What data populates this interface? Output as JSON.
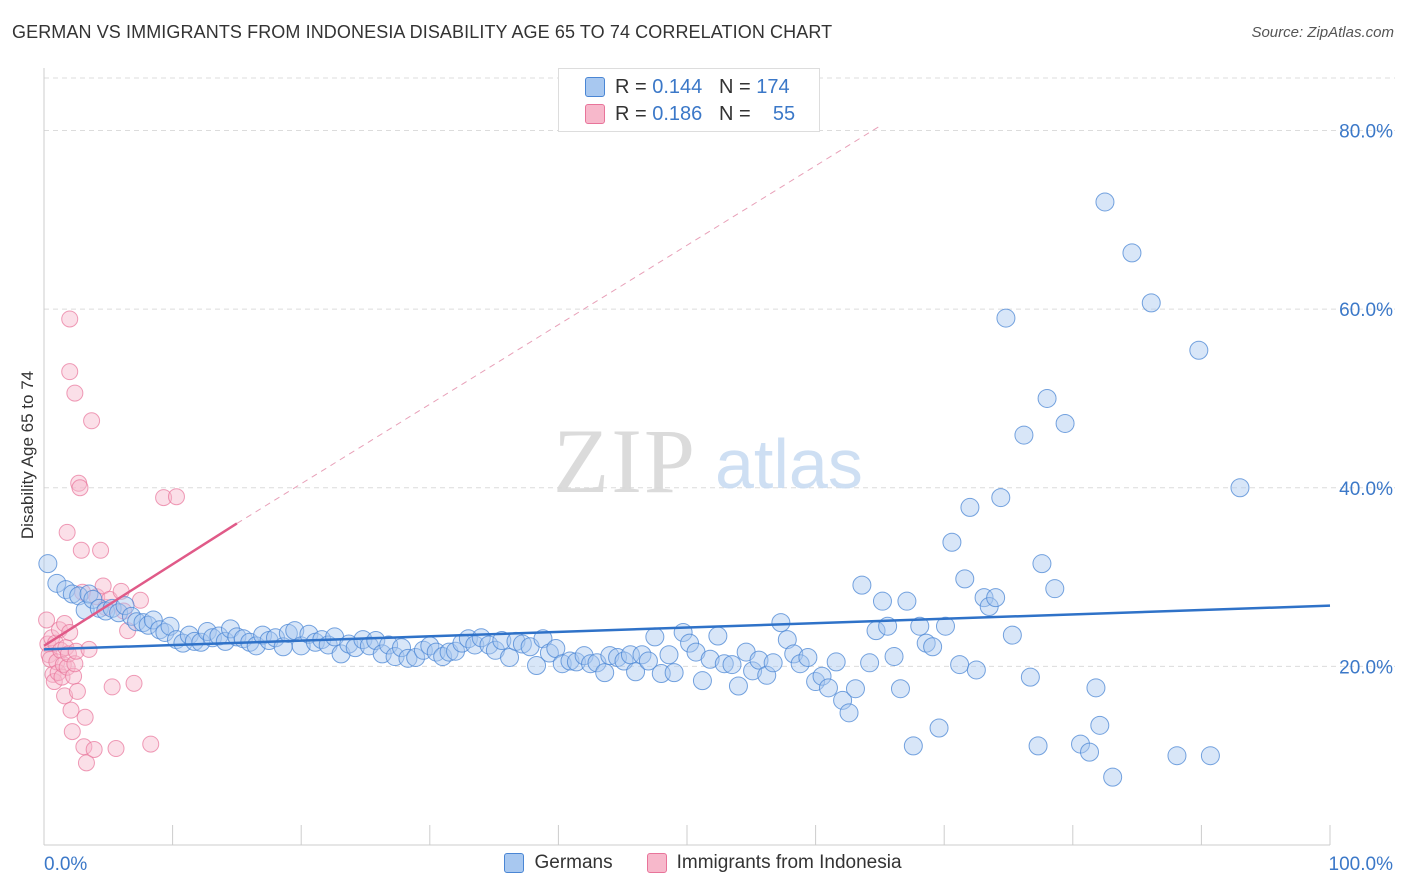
{
  "title": "GERMAN VS IMMIGRANTS FROM INDONESIA DISABILITY AGE 65 TO 74 CORRELATION CHART",
  "source": "Source: ZipAtlas.com",
  "watermark": {
    "zip": "ZIP",
    "atlas": "atlas"
  },
  "legend": {
    "rows": [
      {
        "r_label": "R =",
        "r_value": "0.144",
        "n_label": "N =",
        "n_value": "174"
      },
      {
        "r_label": "R =",
        "r_value": "0.186",
        "n_label": "N =",
        "n_value": "55"
      }
    ]
  },
  "bottom_legend": {
    "germans": "Germans",
    "indonesia": "Immigrants from Indonesia"
  },
  "colors": {
    "blue_fill": "#a8c8f0",
    "blue_stroke": "#4a86d4",
    "blue_line": "#2f72c8",
    "pink_fill": "#f7b8cb",
    "pink_stroke": "#e8749a",
    "pink_line": "#e05a88",
    "grid": "#dcdcdc",
    "axis_label": "#3b78c8"
  },
  "chart_data": {
    "type": "scatter",
    "title": "GERMAN VS IMMIGRANTS FROM INDONESIA DISABILITY AGE 65 TO 74 CORRELATION CHART",
    "xlabel": "",
    "ylabel": "Disability Age 65 to 74",
    "xlim": [
      0,
      100
    ],
    "ylim": [
      0,
      87
    ],
    "x_tick_labels": [
      "0.0%",
      "100.0%"
    ],
    "y_ticks": [
      20,
      40,
      60,
      80
    ],
    "y_tick_labels": [
      "20.0%",
      "40.0%",
      "60.0%",
      "80.0%"
    ],
    "grid": true,
    "legend_position": "top-center",
    "series": [
      {
        "name": "Germans",
        "trend": {
          "x0": 0,
          "y0": 21.9,
          "x1": 100,
          "y1": 26.8
        },
        "points": [
          [
            0.3,
            31.5
          ],
          [
            1.0,
            29.3
          ],
          [
            1.7,
            28.6
          ],
          [
            2.2,
            28.1
          ],
          [
            2.7,
            27.9
          ],
          [
            3.2,
            26.3
          ],
          [
            3.5,
            28.1
          ],
          [
            3.8,
            27.5
          ],
          [
            4.3,
            26.5
          ],
          [
            4.8,
            26.2
          ],
          [
            5.3,
            26.5
          ],
          [
            5.8,
            26.0
          ],
          [
            6.3,
            26.8
          ],
          [
            6.8,
            25.6
          ],
          [
            7.2,
            25.0
          ],
          [
            7.7,
            24.9
          ],
          [
            8.1,
            24.6
          ],
          [
            8.5,
            25.2
          ],
          [
            9.0,
            24.1
          ],
          [
            9.4,
            23.8
          ],
          [
            9.8,
            24.5
          ],
          [
            10.3,
            23.0
          ],
          [
            10.8,
            22.6
          ],
          [
            11.3,
            23.5
          ],
          [
            11.7,
            22.8
          ],
          [
            12.2,
            22.7
          ],
          [
            12.7,
            23.9
          ],
          [
            13.1,
            23.2
          ],
          [
            13.6,
            23.4
          ],
          [
            14.1,
            22.8
          ],
          [
            14.5,
            24.2
          ],
          [
            15.0,
            23.3
          ],
          [
            15.5,
            23.1
          ],
          [
            16.0,
            22.7
          ],
          [
            16.5,
            22.3
          ],
          [
            17.0,
            23.5
          ],
          [
            17.5,
            22.9
          ],
          [
            18.0,
            23.2
          ],
          [
            18.6,
            22.2
          ],
          [
            19.0,
            23.7
          ],
          [
            19.5,
            24.0
          ],
          [
            20.0,
            22.3
          ],
          [
            20.6,
            23.6
          ],
          [
            21.1,
            22.7
          ],
          [
            21.6,
            23.0
          ],
          [
            22.1,
            22.4
          ],
          [
            22.6,
            23.3
          ],
          [
            23.1,
            21.4
          ],
          [
            23.7,
            22.5
          ],
          [
            24.2,
            22.1
          ],
          [
            24.8,
            23.0
          ],
          [
            25.3,
            22.3
          ],
          [
            25.8,
            22.9
          ],
          [
            26.3,
            21.4
          ],
          [
            26.8,
            22.4
          ],
          [
            27.3,
            21.1
          ],
          [
            27.8,
            22.1
          ],
          [
            28.3,
            20.9
          ],
          [
            28.9,
            21.0
          ],
          [
            29.5,
            21.8
          ],
          [
            30.0,
            22.3
          ],
          [
            30.5,
            21.6
          ],
          [
            31.0,
            21.1
          ],
          [
            31.5,
            21.6
          ],
          [
            32.0,
            21.7
          ],
          [
            32.5,
            22.6
          ],
          [
            33.0,
            23.1
          ],
          [
            33.5,
            22.4
          ],
          [
            34.0,
            23.2
          ],
          [
            34.6,
            22.4
          ],
          [
            35.1,
            21.8
          ],
          [
            35.6,
            22.9
          ],
          [
            36.2,
            21.0
          ],
          [
            36.7,
            22.8
          ],
          [
            37.2,
            22.5
          ],
          [
            37.8,
            22.2
          ],
          [
            38.3,
            20.1
          ],
          [
            38.8,
            23.1
          ],
          [
            39.3,
            21.5
          ],
          [
            39.8,
            22.0
          ],
          [
            40.3,
            20.3
          ],
          [
            40.9,
            20.6
          ],
          [
            41.4,
            20.5
          ],
          [
            42.0,
            21.2
          ],
          [
            42.5,
            20.3
          ],
          [
            43.0,
            20.4
          ],
          [
            43.6,
            19.3
          ],
          [
            44.0,
            21.2
          ],
          [
            44.6,
            21.0
          ],
          [
            45.1,
            20.6
          ],
          [
            45.6,
            21.3
          ],
          [
            46.0,
            19.4
          ],
          [
            46.5,
            21.3
          ],
          [
            47.0,
            20.6
          ],
          [
            47.5,
            23.3
          ],
          [
            48.0,
            19.2
          ],
          [
            48.6,
            21.3
          ],
          [
            49.0,
            19.3
          ],
          [
            49.7,
            23.8
          ],
          [
            50.2,
            22.6
          ],
          [
            50.7,
            21.6
          ],
          [
            51.2,
            18.4
          ],
          [
            51.8,
            20.8
          ],
          [
            52.4,
            23.4
          ],
          [
            52.9,
            20.3
          ],
          [
            53.5,
            20.2
          ],
          [
            54.0,
            17.8
          ],
          [
            54.6,
            21.6
          ],
          [
            55.1,
            19.5
          ],
          [
            55.6,
            20.7
          ],
          [
            56.2,
            19.0
          ],
          [
            56.7,
            20.4
          ],
          [
            57.3,
            24.9
          ],
          [
            57.8,
            23.0
          ],
          [
            58.3,
            21.4
          ],
          [
            58.8,
            20.3
          ],
          [
            59.4,
            21.0
          ],
          [
            60.0,
            18.3
          ],
          [
            60.5,
            18.9
          ],
          [
            61.0,
            17.6
          ],
          [
            61.6,
            20.5
          ],
          [
            62.1,
            16.2
          ],
          [
            62.6,
            14.8
          ],
          [
            63.1,
            17.5
          ],
          [
            63.6,
            29.1
          ],
          [
            64.2,
            20.4
          ],
          [
            64.7,
            24.0
          ],
          [
            65.2,
            27.3
          ],
          [
            65.6,
            24.5
          ],
          [
            66.1,
            21.1
          ],
          [
            66.6,
            17.5
          ],
          [
            67.1,
            27.3
          ],
          [
            67.6,
            11.1
          ],
          [
            68.1,
            24.5
          ],
          [
            68.6,
            22.6
          ],
          [
            69.1,
            22.2
          ],
          [
            69.6,
            13.1
          ],
          [
            70.1,
            24.5
          ],
          [
            70.6,
            33.9
          ],
          [
            71.2,
            20.2
          ],
          [
            71.6,
            29.8
          ],
          [
            72.0,
            37.8
          ],
          [
            72.5,
            19.6
          ],
          [
            73.1,
            27.7
          ],
          [
            73.5,
            26.7
          ],
          [
            74.0,
            27.7
          ],
          [
            74.4,
            38.9
          ],
          [
            74.8,
            59.0
          ],
          [
            75.3,
            23.5
          ],
          [
            76.2,
            45.9
          ],
          [
            76.7,
            18.8
          ],
          [
            77.3,
            11.1
          ],
          [
            77.6,
            31.5
          ],
          [
            78.0,
            50.0
          ],
          [
            78.6,
            28.7
          ],
          [
            79.4,
            47.2
          ],
          [
            80.6,
            11.3
          ],
          [
            81.3,
            10.4
          ],
          [
            81.8,
            17.6
          ],
          [
            82.1,
            13.4
          ],
          [
            82.5,
            72.0
          ],
          [
            83.1,
            7.6
          ],
          [
            84.6,
            66.3
          ],
          [
            86.1,
            60.7
          ],
          [
            88.1,
            10.0
          ],
          [
            89.8,
            55.4
          ],
          [
            90.7,
            10.0
          ],
          [
            93.0,
            40.0
          ]
        ]
      },
      {
        "name": "Immigrants from Indonesia",
        "trend": {
          "x0": 0,
          "y0": 22.3,
          "x1": 15,
          "y1": 36.0,
          "dash_x1": 65,
          "dash_y1": 80.5
        },
        "points": [
          [
            0.2,
            25.2
          ],
          [
            0.3,
            22.5
          ],
          [
            0.4,
            21.3
          ],
          [
            0.5,
            20.8
          ],
          [
            0.6,
            23.2
          ],
          [
            0.7,
            19.1
          ],
          [
            0.8,
            18.3
          ],
          [
            0.9,
            22.6
          ],
          [
            1.0,
            20.5
          ],
          [
            1.1,
            19.3
          ],
          [
            1.2,
            24.1
          ],
          [
            1.3,
            21.8
          ],
          [
            1.4,
            18.8
          ],
          [
            1.5,
            20.2
          ],
          [
            1.6,
            16.7
          ],
          [
            1.6,
            24.8
          ],
          [
            1.7,
            22.1
          ],
          [
            1.8,
            19.9
          ],
          [
            1.9,
            21.4
          ],
          [
            2.0,
            23.8
          ],
          [
            2.1,
            15.1
          ],
          [
            2.2,
            12.7
          ],
          [
            2.3,
            18.9
          ],
          [
            2.4,
            20.3
          ],
          [
            2.5,
            21.7
          ],
          [
            2.6,
            17.2
          ],
          [
            2.7,
            40.5
          ],
          [
            2.8,
            40.0
          ],
          [
            2.9,
            33.0
          ],
          [
            3.0,
            28.3
          ],
          [
            3.1,
            11.0
          ],
          [
            3.2,
            14.3
          ],
          [
            3.3,
            9.2
          ],
          [
            3.5,
            21.9
          ],
          [
            3.7,
            47.5
          ],
          [
            3.9,
            10.7
          ],
          [
            4.1,
            27.8
          ],
          [
            4.4,
            33.0
          ],
          [
            4.6,
            29.0
          ],
          [
            4.8,
            26.6
          ],
          [
            5.1,
            27.5
          ],
          [
            5.3,
            17.7
          ],
          [
            5.6,
            10.8
          ],
          [
            6.0,
            28.4
          ],
          [
            6.2,
            26.2
          ],
          [
            6.5,
            24.0
          ],
          [
            7.0,
            18.1
          ],
          [
            7.5,
            27.4
          ],
          [
            8.3,
            11.3
          ],
          [
            9.3,
            38.9
          ],
          [
            10.3,
            39.0
          ],
          [
            2.0,
            58.9
          ],
          [
            2.0,
            53.0
          ],
          [
            2.4,
            50.6
          ],
          [
            1.8,
            35.0
          ]
        ]
      }
    ]
  }
}
